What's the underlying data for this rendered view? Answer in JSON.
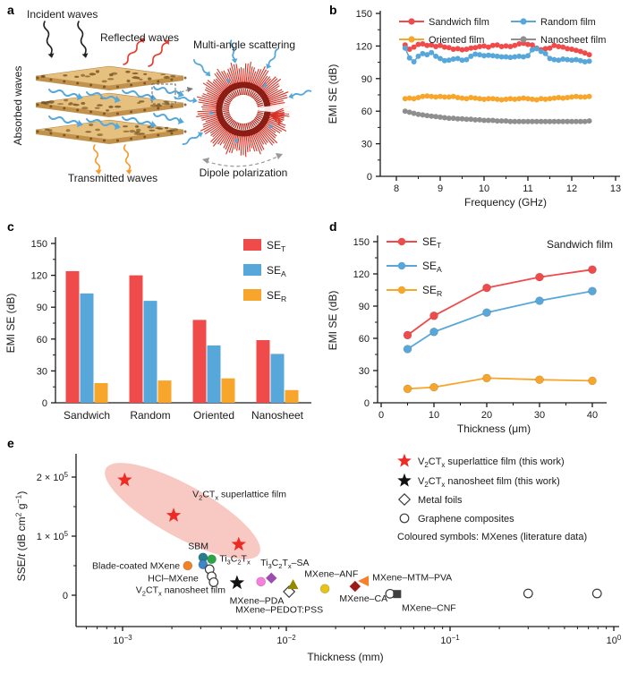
{
  "figure": {
    "panel_labels": [
      "a",
      "b",
      "c",
      "d",
      "e"
    ]
  },
  "panel_a": {
    "labels": {
      "incident": "Incident waves",
      "reflected": "Reflected waves",
      "absorbed": "Absorbed waves",
      "transmitted": "Transmitted waves",
      "multi_angle": "Multi-angle scattering",
      "dipole": "Dipole polarization"
    }
  },
  "chart_data": [
    {
      "id": "b",
      "type": "line",
      "xlabel": "Frequency (GHz)",
      "ylabel": "EMI SE (dB)",
      "xlim": [
        7.63,
        13.1
      ],
      "ylim": [
        0,
        154
      ],
      "xticks": [
        8,
        9,
        10,
        11,
        12,
        13
      ],
      "yticks": [
        0,
        30,
        60,
        90,
        120,
        150
      ],
      "x_start": 8.2,
      "x_step": 0.1,
      "series": [
        {
          "name": "Sandwich film",
          "color": "#EF4B4B",
          "values": [
            121,
            117,
            119,
            121.5,
            122,
            120.5,
            121,
            119.5,
            120.5,
            119,
            118.5,
            117,
            117.5,
            116.5,
            117,
            118,
            118.5,
            119.5,
            120,
            119,
            120.5,
            121,
            119.5,
            120,
            119.5,
            120.5,
            122,
            122.5,
            121.5,
            121,
            118,
            116.5,
            117.5,
            118,
            120.5,
            119.5,
            119,
            117.5,
            117,
            116,
            115,
            113.5,
            112
          ]
        },
        {
          "name": "Random film",
          "color": "#58A7DB",
          "values": [
            118,
            109,
            105.5,
            110.5,
            113,
            112,
            114,
            110.5,
            108.5,
            106.5,
            107,
            108,
            108.5,
            107,
            107.5,
            110.5,
            112.5,
            112,
            111,
            111.5,
            111,
            110.5,
            110,
            110,
            109.5,
            110,
            110.5,
            110,
            111,
            116.5,
            117.5,
            115,
            113,
            108.5,
            107.5,
            107,
            108,
            107.5,
            107,
            107.5,
            106.5,
            105.5,
            106
          ]
        },
        {
          "name": "Oriented film",
          "color": "#F7A62B",
          "values": [
            71.5,
            72,
            71.5,
            72.5,
            73.5,
            74,
            73.5,
            73,
            73.5,
            73,
            73,
            73.5,
            72.5,
            72,
            71.5,
            72.5,
            72,
            71.5,
            71,
            71.5,
            71.5,
            71,
            70.5,
            71,
            71.5,
            71,
            71.5,
            72,
            71.5,
            71,
            70.5,
            71.5,
            71,
            71.5,
            72,
            72.5,
            72,
            72.5,
            73,
            73.5,
            73,
            73,
            73.5
          ]
        },
        {
          "name": "Nanosheet film",
          "color": "#8F8F8F",
          "values": [
            60,
            59,
            58,
            57,
            56.5,
            56,
            55.5,
            55,
            54.5,
            54,
            53.5,
            53.5,
            53,
            53,
            52.5,
            52.5,
            52,
            52,
            51.5,
            51.5,
            51.5,
            51,
            51,
            51,
            50.5,
            50.5,
            50.5,
            50.5,
            50.5,
            50.5,
            50.5,
            50.5,
            50.5,
            50.5,
            50.5,
            50.5,
            50.5,
            50.5,
            50.5,
            50.5,
            50.5,
            50.5,
            51
          ]
        }
      ]
    },
    {
      "id": "c",
      "type": "bar",
      "xlabel": "",
      "ylabel": "EMI SE (dB)",
      "categories": [
        "Sandwich",
        "Random",
        "Oriented",
        "Nanosheet"
      ],
      "ylim": [
        0,
        155
      ],
      "yticks": [
        0,
        30,
        60,
        90,
        120,
        150
      ],
      "series": [
        {
          "name": "SE~T~",
          "color": "#EF4B4B",
          "values": [
            124,
            120,
            78,
            59
          ]
        },
        {
          "name": "SE~A~",
          "color": "#58A7DB",
          "values": [
            103,
            96,
            54,
            46
          ]
        },
        {
          "name": "SE~R~",
          "color": "#F7A62B",
          "values": [
            18.5,
            21,
            23,
            12
          ]
        }
      ]
    },
    {
      "id": "d",
      "type": "line",
      "xlabel": "Thickness (μm)",
      "ylabel": "EMI SE (dB)",
      "annotation": "Sandwich film",
      "xlim": [
        0,
        43
      ],
      "ylim": [
        0,
        154
      ],
      "xticks": [
        0,
        10,
        20,
        30,
        40
      ],
      "yticks": [
        0,
        30,
        60,
        90,
        120,
        150
      ],
      "x": [
        5,
        10,
        20,
        30,
        40
      ],
      "series": [
        {
          "name": "SE~T~",
          "color": "#EF4B4B",
          "values": [
            63,
            81,
            107,
            117,
            124
          ]
        },
        {
          "name": "SE~A~",
          "color": "#58A7DB",
          "values": [
            50,
            66,
            84,
            95,
            104
          ]
        },
        {
          "name": "SE~R~",
          "color": "#F7A62B",
          "values": [
            13,
            14.5,
            23,
            21.5,
            20.5
          ]
        }
      ]
    },
    {
      "id": "e",
      "type": "scatter",
      "x_scale": "log",
      "xlabel": "Thickness (mm)",
      "ylabel": "SSE/*t* (dB cm^2^ g^−1^)",
      "xticks": [
        0.001,
        0.01,
        0.1,
        1
      ],
      "xtick_labels": [
        "10^−3^",
        "10^−2^",
        "10^−1^",
        "10^0^"
      ],
      "yticks": [
        0,
        100000,
        200000
      ],
      "ytick_labels": [
        "0",
        "1 × 10^5^",
        "2 × 10^5^"
      ],
      "ylim": [
        -50000,
        240000
      ],
      "legend": [
        {
          "marker": "star",
          "color": "#EE2A24",
          "label": "V~2~CT~x~ superlattice film (this work)"
        },
        {
          "marker": "star",
          "color": "#111111",
          "label": "V~2~CT~x~ nanosheet film (this work)"
        },
        {
          "marker": "open-diamond",
          "color": "",
          "label": "Metal foils"
        },
        {
          "marker": "open-circle",
          "color": "",
          "label": "Graphene composites"
        },
        {
          "marker": "none",
          "color": "",
          "label": "Coloured symbols: MXenes (literature data)"
        }
      ],
      "points": [
        {
          "x": 0.00103,
          "y": 195000,
          "marker": "star",
          "color": "#EE2A24"
        },
        {
          "x": 0.00205,
          "y": 135000,
          "marker": "star",
          "color": "#EE2A24"
        },
        {
          "x": 0.00512,
          "y": 86000,
          "marker": "star",
          "color": "#EE2A24"
        },
        {
          "x": 0.0025,
          "y": 50000,
          "marker": "circle",
          "color": "#F08124"
        },
        {
          "x": 0.0031,
          "y": 64000,
          "marker": "circle",
          "color": "#267E8C"
        },
        {
          "x": 0.0031,
          "y": 52000,
          "marker": "circle",
          "color": "#3E86C6"
        },
        {
          "x": 0.0035,
          "y": 61000,
          "marker": "circle",
          "color": "#2AA546"
        },
        {
          "x": 0.0034,
          "y": 44000,
          "marker": "open-circle",
          "color": ""
        },
        {
          "x": 0.0035,
          "y": 32000,
          "marker": "open-circle",
          "color": ""
        },
        {
          "x": 0.0036,
          "y": 22000,
          "marker": "open-circle",
          "color": ""
        },
        {
          "x": 0.005,
          "y": 21000,
          "marker": "star",
          "color": "#111111"
        },
        {
          "x": 0.007,
          "y": 23000,
          "marker": "circle",
          "color": "#F77FDE"
        },
        {
          "x": 0.0081,
          "y": 29000,
          "marker": "diamond",
          "color": "#9C4DAE"
        },
        {
          "x": 0.0104,
          "y": 6000,
          "marker": "open-diamond",
          "color": ""
        },
        {
          "x": 0.011,
          "y": 18000,
          "marker": "triangle-up",
          "color": "#938800"
        },
        {
          "x": 0.0172,
          "y": 11000,
          "marker": "circle",
          "color": "#E5C417"
        },
        {
          "x": 0.0263,
          "y": 15000,
          "marker": "diamond",
          "color": "#9E1A15"
        },
        {
          "x": 0.0299,
          "y": 24000,
          "marker": "triangle-left",
          "color": "#F4812E"
        },
        {
          "x": 0.043,
          "y": 2500,
          "marker": "open-circle",
          "color": ""
        },
        {
          "x": 0.0475,
          "y": 2000,
          "marker": "square",
          "color": "#3F3F3F"
        },
        {
          "x": 0.3,
          "y": 3000,
          "marker": "open-circle",
          "color": ""
        },
        {
          "x": 0.79,
          "y": 3000,
          "marker": "open-circle",
          "color": ""
        }
      ],
      "annotations": [
        {
          "text": "V~2~CT~x~ superlattice film",
          "x": 0.00267,
          "y": 171000,
          "anchor": "start"
        },
        {
          "text": "SBM",
          "x": 0.0029,
          "y": 83000,
          "anchor": "middle"
        },
        {
          "text": "Blade-coated MXene",
          "x": 0.00224,
          "y": 50000,
          "anchor": "end"
        },
        {
          "text": "HCl–MXene",
          "x": 0.00291,
          "y": 29000,
          "anchor": "end"
        },
        {
          "text": "V~2~CT~x~ nanosheet film",
          "x": 0.00425,
          "y": 9000,
          "anchor": "end"
        },
        {
          "text": "Ti~3~C~2~T~x~",
          "x": 0.0039,
          "y": 62000,
          "anchor": "start"
        },
        {
          "text": "Ti~3~C~2~T~x~–SA",
          "x": 0.00695,
          "y": 55000,
          "anchor": "start"
        },
        {
          "text": "MXene–ANF",
          "x": 0.0129,
          "y": 36000,
          "anchor": "start"
        },
        {
          "text": "MXene–MTM–PVA",
          "x": 0.0335,
          "y": 30000,
          "anchor": "start"
        },
        {
          "text": "MXene–PDA",
          "x": 0.0066,
          "y": -9000,
          "anchor": "middle"
        },
        {
          "text": "MXene–PEDOT:PSS",
          "x": 0.00905,
          "y": -24000,
          "anchor": "middle"
        },
        {
          "text": "MXene–CA",
          "x": 0.0415,
          "y": -5000,
          "anchor": "end"
        },
        {
          "text": "MXene–CNF",
          "x": 0.0507,
          "y": -21000,
          "anchor": "start"
        }
      ]
    }
  ]
}
